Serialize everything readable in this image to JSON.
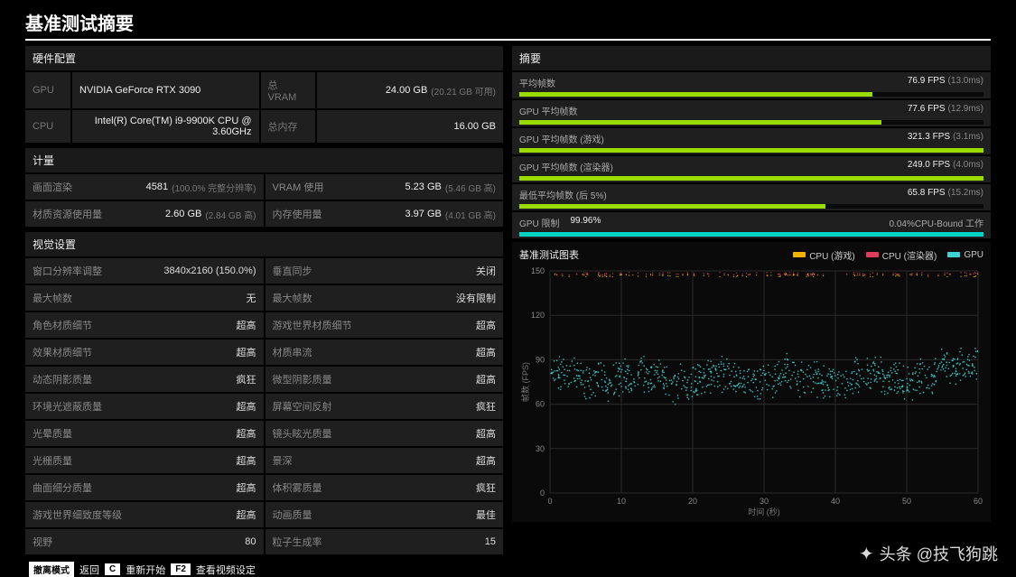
{
  "title": "基准测试摘要",
  "hw": {
    "head": "硬件配置",
    "gpu_lbl": "GPU",
    "gpu_val": "NVIDIA GeForce RTX 3090",
    "vram_lbl": "总 VRAM",
    "vram_val": "24.00 GB",
    "vram_sub": "(20.21 GB 可用)",
    "cpu_lbl": "CPU",
    "cpu_val": "Intel(R) Core(TM) i9-9900K CPU @ 3.60GHz",
    "mem_lbl": "总内存",
    "mem_val": "16.00 GB"
  },
  "metrics": {
    "head": "计量",
    "r1a_lbl": "画面渲染",
    "r1a_val": "4581",
    "r1a_sub": "(100.0% 完整分辨率)",
    "r1b_lbl": "VRAM 使用",
    "r1b_val": "5.23 GB",
    "r1b_sub": "(5.46 GB 高)",
    "r2a_lbl": "材质资源使用量",
    "r2a_val": "2.60 GB",
    "r2a_sub": "(2.84 GB 高)",
    "r2b_lbl": "内存使用量",
    "r2b_val": "3.97 GB",
    "r2b_sub": "(4.01 GB 高)"
  },
  "settings": {
    "head": "视觉设置",
    "rows": [
      [
        "窗口分辨率调整",
        "3840x2160 (150.0%)",
        "垂直同步",
        "关闭"
      ],
      [
        "最大帧数",
        "无",
        "最大帧数",
        "没有限制"
      ],
      [
        "角色材质细节",
        "超高",
        "游戏世界材质细节",
        "超高"
      ],
      [
        "效果材质细节",
        "超高",
        "材质串流",
        "超高"
      ],
      [
        "动态阴影质量",
        "疯狂",
        "微型阴影质量",
        "超高"
      ],
      [
        "环境光遮蔽质量",
        "超高",
        "屏幕空间反射",
        "疯狂"
      ],
      [
        "光晕质量",
        "超高",
        "镜头眩光质量",
        "超高"
      ],
      [
        "光栅质量",
        "超高",
        "景深",
        "超高"
      ],
      [
        "曲面细分质量",
        "超高",
        "体积雾质量",
        "疯狂"
      ],
      [
        "游戏世界细致度等级",
        "超高",
        "动画质量",
        "最佳"
      ],
      [
        "视野",
        "80",
        "粒子生成率",
        "15"
      ]
    ]
  },
  "summary": {
    "head": "摘要",
    "bars": [
      {
        "label": "平均帧数",
        "value": "76.9 FPS",
        "sub": "(13.0ms)",
        "pct": 76
      },
      {
        "label": "GPU 平均帧数",
        "value": "77.6 FPS",
        "sub": "(12.9ms)",
        "pct": 78
      },
      {
        "label": "GPU 平均帧数 (游戏)",
        "value": "321.3 FPS",
        "sub": "(3.1ms)",
        "pct": 100
      },
      {
        "label": "GPU 平均帧数 (渲染器)",
        "value": "249.0 FPS",
        "sub": "(4.0ms)",
        "pct": 100
      },
      {
        "label": "最低平均帧数 (后 5%)",
        "value": "65.8 FPS",
        "sub": "(15.2ms)",
        "pct": 66
      }
    ],
    "gpu_limit_lbl": "GPU 限制",
    "gpu_limit_val": "99.96%",
    "gpu_limit_right": "0.04%CPU-Bound 工作",
    "gpu_limit_pct": 99.96
  },
  "chart": {
    "head": "基准测试图表",
    "legend": [
      {
        "label": "CPU (游戏)",
        "color": "#f2b200"
      },
      {
        "label": "CPU (渲染器)",
        "color": "#e03b5a"
      },
      {
        "label": "GPU",
        "color": "#3fd4d4"
      }
    ],
    "ylabel": "帧数 (FPS)",
    "xlabel": "时间 (秒)",
    "ylim": [
      0,
      150
    ],
    "yticks": [
      0,
      30,
      60,
      90,
      120,
      150
    ],
    "xlim": [
      0,
      60
    ],
    "xticks": [
      0,
      10,
      20,
      30,
      40,
      50,
      60
    ],
    "grid_color": "#2a2a2a",
    "bg_color": "#0a0a0a",
    "gpu_color": "#3fd4d4",
    "cpu_game_color": "#f2b200",
    "cpu_render_color": "#e03b5a",
    "gpu_band_center": 77,
    "gpu_band_spread": 14,
    "gpu_rise_start": 54,
    "gpu_rise_end_center": 92,
    "cpu_game_y": 148,
    "cpu_render_y": 149,
    "point_count": 900,
    "point_r": 0.8
  },
  "footer": {
    "k1": "撤离模式",
    "t1": "返回",
    "k2": "C",
    "t2": "重新开始",
    "k3": "F2",
    "t3": "查看视频设定"
  },
  "watermark": "头条 @技飞狗跳"
}
